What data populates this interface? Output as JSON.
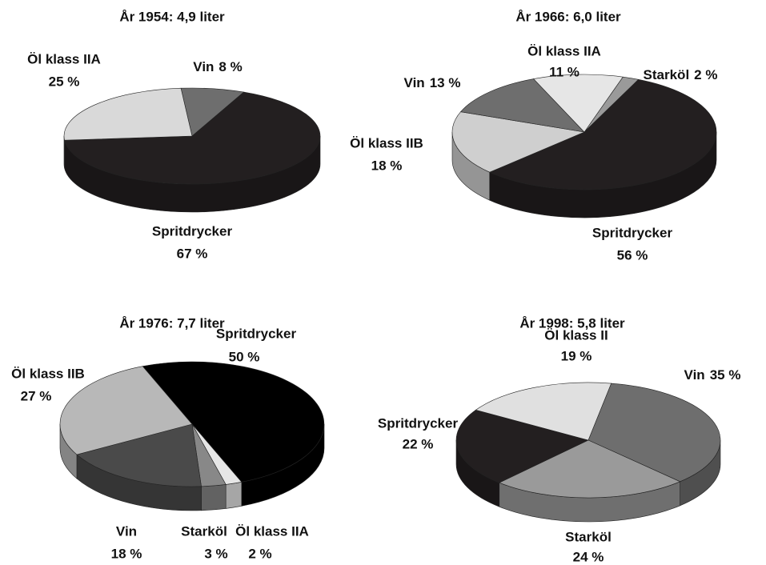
{
  "chart_data": [
    {
      "type": "pie",
      "title": "År 1954: 4,9 liter",
      "categories": [
        "Vin",
        "Spritdrycker",
        "Öl klass IIA"
      ],
      "values": [
        8,
        67,
        25
      ],
      "value_labels": [
        "8 %",
        "67 %",
        "25 %"
      ],
      "colors": [
        "#6e6e6e",
        "#231f20",
        "#d9d9d9"
      ]
    },
    {
      "type": "pie",
      "title": "År 1966: 6,0 liter",
      "categories": [
        "Starköl",
        "Spritdrycker",
        "Öl klass IIB",
        "Vin",
        "Öl klass IIA"
      ],
      "values": [
        2,
        56,
        18,
        13,
        11
      ],
      "value_labels": [
        "2 %",
        "56 %",
        "18 %",
        "13 %",
        "11 %"
      ],
      "colors": [
        "#9a9a9a",
        "#231f20",
        "#cfcfcf",
        "#6e6e6e",
        "#e6e6e6"
      ]
    },
    {
      "type": "pie",
      "title": "År 1976: 7,7 liter",
      "categories": [
        "Spritdrycker",
        "Öl klass IIA",
        "Starköl",
        "Vin",
        "Öl klass IIB"
      ],
      "values": [
        50,
        2,
        3,
        18,
        27
      ],
      "value_labels": [
        "50 %",
        "2 %",
        "3 %",
        "18 %",
        "27 %"
      ],
      "colors": [
        "#000000",
        "#e6e6e6",
        "#888888",
        "#4a4a4a",
        "#b8b8b8"
      ]
    },
    {
      "type": "pie",
      "title": "År 1998: 5,8 liter",
      "categories": [
        "Vin",
        "Starköl",
        "Spritdrycker",
        "Öl klass II"
      ],
      "values": [
        35,
        24,
        22,
        19
      ],
      "value_labels": [
        "35 %",
        "24 %",
        "22 %",
        "19 %"
      ],
      "colors": [
        "#6e6e6e",
        "#9a9a9a",
        "#231f20",
        "#e0e0e0"
      ]
    }
  ]
}
